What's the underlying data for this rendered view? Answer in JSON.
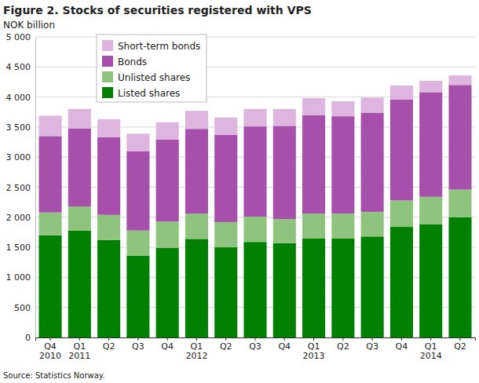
{
  "chart_data": {
    "type": "bar",
    "stacked": true,
    "title": "Figure 2. Stocks of securities registered with VPS",
    "y_label": "NOK billion",
    "source": "Source: Statistics Norway.",
    "categories": [
      "Q4\n2010",
      "Q1\n2011",
      "Q2",
      "Q3",
      "Q4",
      "Q1\n2012",
      "Q2",
      "Q3",
      "Q4",
      "Q1\n2013",
      "Q2",
      "Q3",
      "Q4",
      "Q1\n2014",
      "Q2"
    ],
    "series": [
      {
        "name": "Listed shares",
        "color": "#008000",
        "values": [
          1700,
          1780,
          1620,
          1360,
          1490,
          1640,
          1500,
          1590,
          1570,
          1650,
          1650,
          1680,
          1840,
          1880,
          2000
        ]
      },
      {
        "name": "Unlisted shares",
        "color": "#8fc47f",
        "values": [
          380,
          400,
          420,
          420,
          440,
          420,
          420,
          420,
          400,
          410,
          410,
          410,
          440,
          460,
          460
        ]
      },
      {
        "name": "Bonds",
        "color": "#a64fab",
        "values": [
          1270,
          1300,
          1290,
          1320,
          1360,
          1410,
          1450,
          1500,
          1550,
          1640,
          1620,
          1650,
          1680,
          1740,
          1740
        ]
      },
      {
        "name": "Short-term bonds",
        "color": "#ddb5df",
        "values": [
          340,
          320,
          300,
          290,
          290,
          300,
          290,
          290,
          280,
          280,
          250,
          250,
          230,
          190,
          160
        ]
      }
    ],
    "ylim": [
      0,
      5000
    ],
    "yticks": [
      0,
      500,
      {
        "value": 1000,
        "label": "1 000"
      },
      {
        "value": 1500,
        "label": "1 500"
      },
      {
        "value": 2000,
        "label": "2 000"
      },
      {
        "value": 2500,
        "label": "2 500"
      },
      {
        "value": 3000,
        "label": "3 000"
      },
      {
        "value": 3500,
        "label": "3 500"
      },
      {
        "value": 4000,
        "label": "4 000"
      },
      {
        "value": 4500,
        "label": "4 500"
      },
      {
        "value": 5000,
        "label": "5 000"
      }
    ],
    "grid": true,
    "legend": "top-left"
  }
}
